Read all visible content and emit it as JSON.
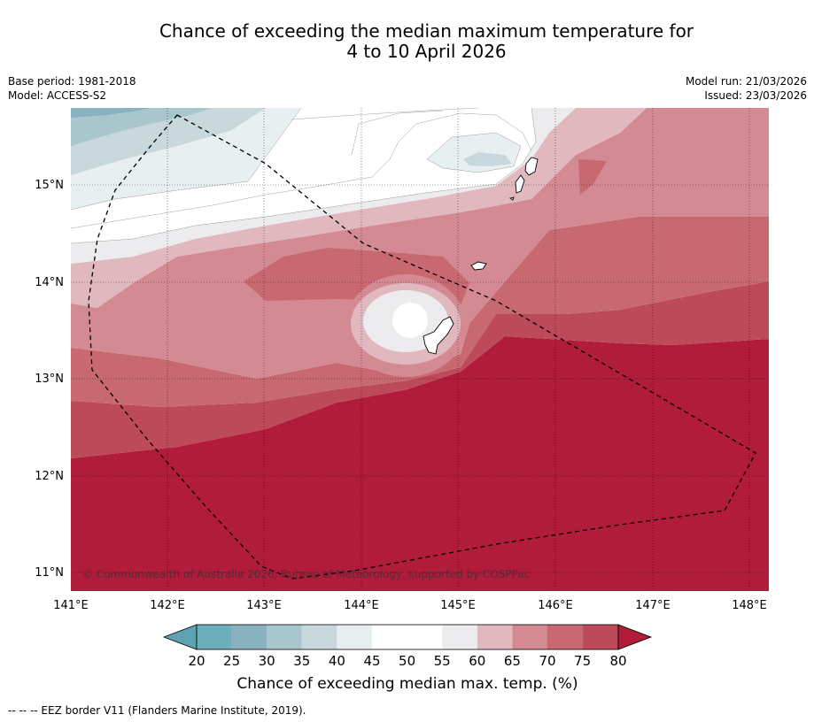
{
  "title": {
    "line1": "Chance of exceeding the median maximum temperature for",
    "line2": "4 to 10 April 2026"
  },
  "meta": {
    "base_period": "Base period: 1981-2018",
    "model": "Model: ACCESS-S2",
    "model_run": "Model run: 21/03/2026",
    "issued": "Issued: 23/03/2026"
  },
  "map": {
    "copyright": "© Commonwealth of Australia 2026, Bureau of Meteorology, supported by COSPPac",
    "x_ticks": [
      "141°E",
      "142°E",
      "143°E",
      "144°E",
      "145°E",
      "146°E",
      "147°E",
      "148°E"
    ],
    "y_ticks": [
      "15°N",
      "14°N",
      "13°N",
      "12°N",
      "11°N"
    ]
  },
  "colorbar": {
    "ticks": [
      "20",
      "25",
      "30",
      "35",
      "40",
      "45",
      "50",
      "55",
      "60",
      "65",
      "70",
      "75",
      "80"
    ],
    "label": "Chance of exceeding median max. temp. (%)",
    "colors": {
      "lt20": "#5fa3b3",
      "c20_25": "#6eadbb",
      "c25_30": "#88b2c0",
      "c30_35": "#a8c6cc",
      "c35_40": "#c9d8dd",
      "c40_45": "#e8eff1",
      "c45_50": "#ffffff",
      "c50_55": "#ffffff",
      "c55_60": "#ecebed",
      "c60_65": "#e0b8be",
      "c65_70": "#d48a93",
      "c70_75": "#c86870",
      "c75_80": "#bd4a58",
      "gt80": "#b01c3a"
    }
  },
  "footnote": "--  --  -- EEZ border V11 (Flanders Marine Institute, 2019)."
}
